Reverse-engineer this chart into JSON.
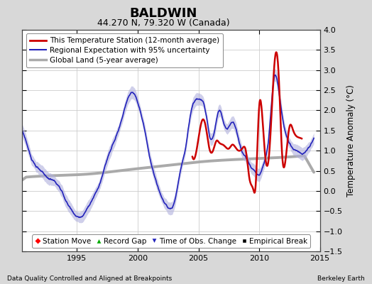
{
  "title": "BALDWIN",
  "subtitle": "44.270 N, 79.320 W (Canada)",
  "ylabel": "Temperature Anomaly (°C)",
  "xlabel_left": "Data Quality Controlled and Aligned at Breakpoints",
  "xlabel_right": "Berkeley Earth",
  "xlim": [
    1990.5,
    2015.0
  ],
  "ylim": [
    -1.5,
    4.0
  ],
  "yticks": [
    -1.5,
    -1.0,
    -0.5,
    0.0,
    0.5,
    1.0,
    1.5,
    2.0,
    2.5,
    3.0,
    3.5,
    4.0
  ],
  "xticks": [
    1995,
    2000,
    2005,
    2010,
    2015
  ],
  "background_color": "#d8d8d8",
  "plot_bg_color": "#ffffff",
  "grid_color": "#cccccc",
  "red_line_color": "#cc0000",
  "blue_line_color": "#2222bb",
  "blue_fill_color": "#b0b0dd",
  "gray_line_color": "#aaaaaa",
  "title_fontsize": 13,
  "subtitle_fontsize": 9,
  "tick_fontsize": 8,
  "legend_fontsize": 7.5
}
